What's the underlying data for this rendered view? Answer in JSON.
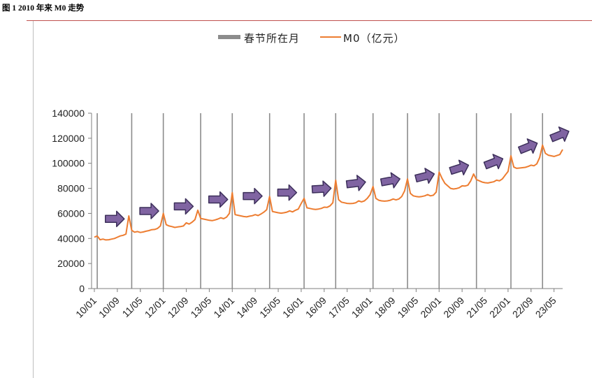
{
  "figure": {
    "title": "图 1 2010 年来 M0 走势"
  },
  "colors": {
    "series_line": "#ED7D31",
    "festival_bar": "#8c8c8c",
    "arrow_fill": "#8064A2",
    "arrow_stroke": "#3c2f5a",
    "axis": "#7f7f7f",
    "title_rule": "#c0504d"
  },
  "chart_data": {
    "type": "line",
    "title": "",
    "xlabel": "",
    "ylabel": "",
    "ylim": [
      0,
      140000
    ],
    "yticks": [
      0,
      20000,
      40000,
      60000,
      80000,
      100000,
      120000,
      140000
    ],
    "ytick_labels": [
      "0",
      "20000",
      "40000",
      "60000",
      "80000",
      "100000",
      "120000",
      "140000"
    ],
    "x_start": "2010-01",
    "x_end": "2023-08",
    "xtick_labels": [
      "10/01",
      "10/09",
      "11/05",
      "12/01",
      "12/09",
      "13/05",
      "14/01",
      "14/09",
      "15/05",
      "16/01",
      "16/09",
      "17/05",
      "18/01",
      "18/09",
      "19/05",
      "20/01",
      "20/09",
      "21/05",
      "22/01",
      "22/09",
      "23/05"
    ],
    "legend": [
      {
        "label": "春节所在月",
        "type": "bar",
        "icon": "gray-bar-swatch"
      },
      {
        "label": "M0（亿元）",
        "type": "line",
        "icon": "orange-line-swatch"
      }
    ],
    "legend_position": "top-center",
    "spring_festival_months": [
      "2010-02",
      "2011-02",
      "2012-01",
      "2013-02",
      "2014-01",
      "2015-02",
      "2016-02",
      "2017-01",
      "2018-02",
      "2019-02",
      "2020-01",
      "2021-02",
      "2022-02",
      "2023-01"
    ],
    "annotation_icons": "right-arrow markers between festival months indicating upward trend",
    "annual_levels": [
      {
        "year": 2010,
        "values": [
          41000,
          42000,
          39000,
          39500,
          38800,
          39000,
          39500,
          40000,
          41000,
          42000,
          42500,
          43500
        ]
      },
      {
        "year": 2011,
        "values": [
          58000,
          46500,
          45000,
          45500,
          44800,
          45200,
          45800,
          46300,
          47000,
          47200,
          48000,
          50000
        ]
      },
      {
        "year": 2012,
        "values": [
          60000,
          51000,
          50000,
          49500,
          48800,
          49200,
          49500,
          50000,
          52500,
          51500,
          53000,
          55000
        ]
      },
      {
        "year": 2013,
        "values": [
          62500,
          56000,
          55500,
          55000,
          54500,
          54200,
          54800,
          55500,
          56500,
          55800,
          57000,
          60000
        ]
      },
      {
        "year": 2014,
        "values": [
          76500,
          59000,
          58500,
          58000,
          57500,
          57200,
          57800,
          58200,
          59000,
          58300,
          59500,
          61000
        ]
      },
      {
        "year": 2015,
        "values": [
          63000,
          73500,
          61500,
          61000,
          60500,
          60200,
          60500,
          61000,
          62000,
          61200,
          62500,
          63500
        ]
      },
      {
        "year": 2016,
        "values": [
          68000,
          72000,
          64500,
          64000,
          63500,
          63200,
          63500,
          64000,
          65000,
          64800,
          66000,
          68500
        ]
      },
      {
        "year": 2017,
        "values": [
          86500,
          71000,
          69000,
          68500,
          68000,
          67800,
          68000,
          68500,
          70000,
          69200,
          70000,
          72000
        ]
      },
      {
        "year": 2018,
        "values": [
          75000,
          81500,
          72000,
          70500,
          70000,
          69800,
          70000,
          70500,
          71500,
          70800,
          71500,
          73500
        ]
      },
      {
        "year": 2019,
        "values": [
          78000,
          87500,
          76000,
          74000,
          73500,
          73200,
          73500,
          74000,
          75000,
          74000,
          74500,
          77000
        ]
      },
      {
        "year": 2020,
        "values": [
          93000,
          88000,
          84000,
          82000,
          80000,
          79500,
          79800,
          80500,
          82000,
          81800,
          82500,
          86000
        ]
      },
      {
        "year": 2021,
        "values": [
          91500,
          87000,
          86000,
          85000,
          84500,
          84300,
          84800,
          85200,
          86500,
          86000,
          87500,
          90500
        ]
      },
      {
        "year": 2022,
        "values": [
          93500,
          106000,
          97000,
          96000,
          96200,
          96500,
          96800,
          97500,
          98500,
          98000,
          99500,
          104500
        ]
      },
      {
        "year": 2023,
        "values": [
          114500,
          108000,
          106500,
          106000,
          105500,
          106200,
          107000,
          111000
        ]
      }
    ]
  }
}
